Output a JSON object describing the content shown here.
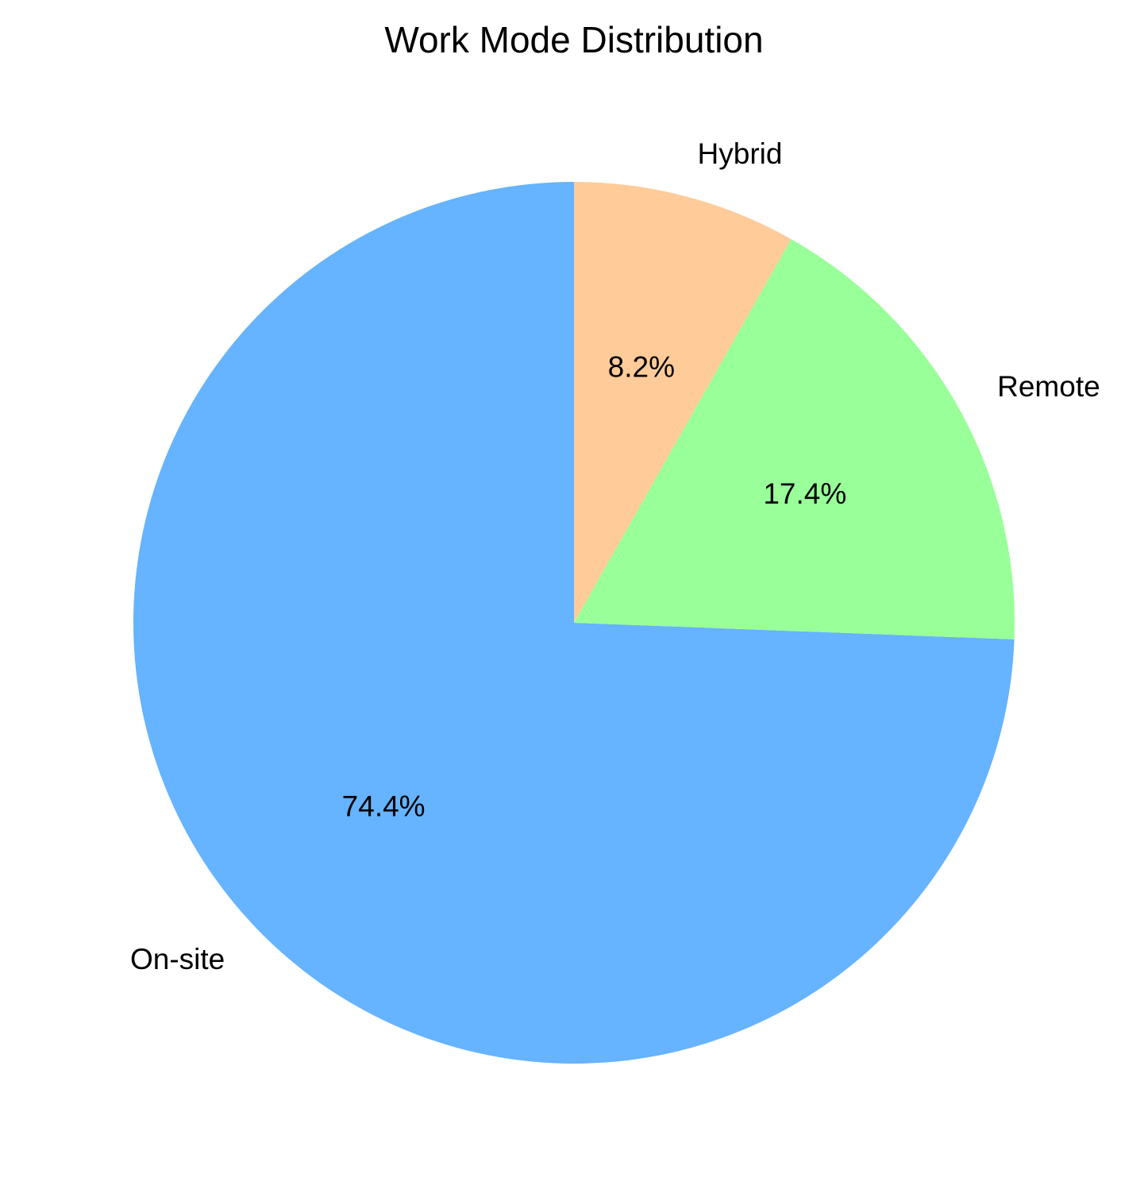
{
  "chart_data": {
    "type": "pie",
    "title": "Work Mode Distribution",
    "start_angle_deg": 90,
    "direction": "counterclockwise",
    "slices": [
      {
        "label": "On-site",
        "value": 74.4,
        "pct_label": "74.4%",
        "color": "#66b3ff"
      },
      {
        "label": "Remote",
        "value": 17.4,
        "pct_label": "17.4%",
        "color": "#99ff99"
      },
      {
        "label": "Hybrid",
        "value": 8.2,
        "pct_label": "8.2%",
        "color": "#ffcc99"
      }
    ]
  }
}
